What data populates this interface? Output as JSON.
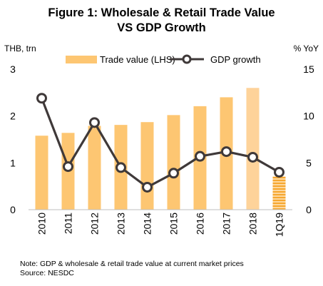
{
  "chart_data": {
    "type": "bar+line",
    "title": "Figure 1: Wholesale & Retail Trade Value",
    "subtitle": "VS GDP Growth",
    "left_axis_label": "THB, trn",
    "right_axis_label": "% YoY",
    "categories": [
      "2010",
      "2011",
      "2012",
      "2013",
      "2014",
      "2015",
      "2016",
      "2017",
      "2018",
      "1Q19"
    ],
    "series": [
      {
        "name": "Trade value (LHS)",
        "type": "bar",
        "axis": "left",
        "values": [
          1.58,
          1.64,
          1.79,
          1.81,
          1.87,
          2.02,
          2.21,
          2.4,
          2.6,
          0.71
        ]
      },
      {
        "name": "GDP growth",
        "type": "line",
        "axis": "right",
        "values": [
          11.9,
          4.6,
          9.3,
          4.5,
          2.4,
          3.9,
          5.7,
          6.2,
          5.6,
          4.0
        ]
      }
    ],
    "left_ylim": [
      0,
      3
    ],
    "left_ticks": [
      "0",
      "1",
      "2",
      "3"
    ],
    "right_ylim": [
      0,
      15
    ],
    "right_ticks": [
      "0",
      "5",
      "10",
      "15"
    ],
    "legend_position": "top",
    "grid": false,
    "colors": {
      "bar": "#FDC672",
      "bar_2018": "#FED39A",
      "bar_1Q19": "#F8B142",
      "line": "#3F3939",
      "marker_fill": "#ffffff"
    },
    "note": "Note: GDP & wholesale & retail trade value at current market prices",
    "source": "Source: NESDC"
  }
}
